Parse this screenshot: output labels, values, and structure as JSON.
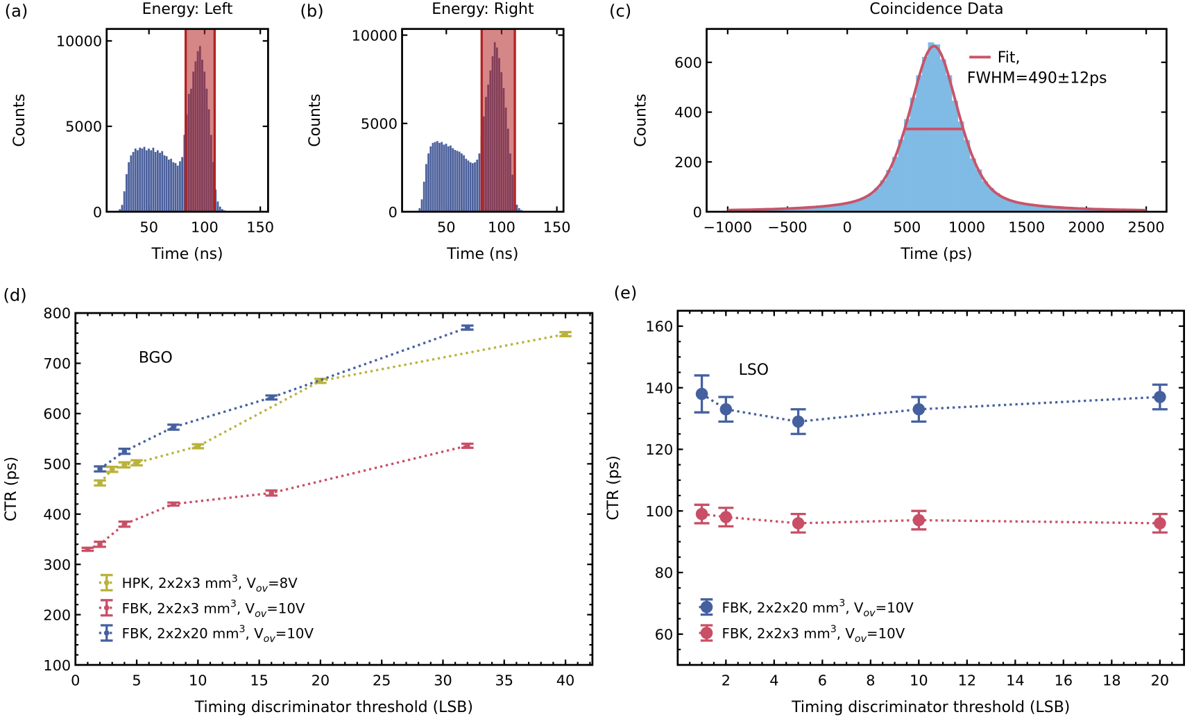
{
  "colors": {
    "blue": "#45609f",
    "red": "#c84f66",
    "olive": "#b9b23c",
    "hist": "#4a5f9b",
    "band": "#b22222",
    "light_blue": "#7fbbe4",
    "fit": "#c8546a"
  },
  "chart_data": [
    {
      "panel_label": "(a)",
      "type": "bar",
      "title": "Energy: Left",
      "xlabel": "Time (ns)",
      "ylabel": "Counts",
      "xlim": [
        12,
        157
      ],
      "ylim": [
        0,
        10700
      ],
      "xticks": [
        50,
        100,
        150
      ],
      "xtick_labels": [
        "50",
        "100",
        "150"
      ],
      "yticks": [
        0,
        5000,
        10000
      ],
      "ytick_labels": [
        "0",
        "5000",
        "10000"
      ],
      "bin_width": 2,
      "x": [
        20,
        22,
        24,
        26,
        28,
        30,
        32,
        34,
        36,
        38,
        40,
        42,
        44,
        46,
        48,
        50,
        52,
        54,
        56,
        58,
        60,
        62,
        64,
        66,
        68,
        70,
        72,
        74,
        76,
        78,
        80,
        82,
        84,
        86,
        88,
        90,
        92,
        94,
        96,
        98,
        100,
        102,
        104,
        106,
        108,
        110,
        112,
        114,
        116,
        118,
        120,
        122,
        124,
        126,
        128
      ],
      "values": [
        0,
        50,
        150,
        400,
        1200,
        2200,
        2900,
        3300,
        3500,
        3700,
        3600,
        3750,
        3700,
        3800,
        3600,
        3700,
        3600,
        3750,
        3500,
        3600,
        3450,
        3550,
        3300,
        3250,
        3050,
        3100,
        2900,
        2850,
        2700,
        2950,
        3200,
        4500,
        5700,
        6900,
        7200,
        8200,
        8800,
        9400,
        9700,
        8900,
        8200,
        7200,
        6000,
        4500,
        2900,
        1300,
        600,
        300,
        150,
        80,
        40,
        20,
        10,
        5,
        0
      ],
      "selection_window": [
        83,
        109
      ]
    },
    {
      "panel_label": "(b)",
      "type": "bar",
      "title": "Energy: Right",
      "xlabel": "Time (ns)",
      "ylabel": "Counts",
      "xlim": [
        10,
        156
      ],
      "ylim": [
        0,
        10350
      ],
      "xticks": [
        50,
        100,
        150
      ],
      "xtick_labels": [
        "50",
        "100",
        "150"
      ],
      "yticks": [
        0,
        5000,
        10000
      ],
      "ytick_labels": [
        "0",
        "5000",
        "10000"
      ],
      "bin_width": 2,
      "x": [
        24,
        26,
        28,
        30,
        32,
        34,
        36,
        38,
        40,
        42,
        44,
        46,
        48,
        50,
        52,
        54,
        56,
        58,
        60,
        62,
        64,
        66,
        68,
        70,
        72,
        74,
        76,
        78,
        80,
        82,
        84,
        86,
        88,
        90,
        92,
        94,
        96,
        98,
        100,
        102,
        104,
        106,
        108,
        110,
        112,
        114,
        116,
        118,
        120,
        122,
        124
      ],
      "values": [
        50,
        200,
        700,
        1700,
        2700,
        3300,
        3700,
        3900,
        3950,
        4000,
        3900,
        3950,
        3800,
        3850,
        3700,
        3750,
        3600,
        3500,
        3450,
        3400,
        3300,
        3200,
        3000,
        2900,
        2800,
        2750,
        2800,
        2950,
        3300,
        4300,
        5400,
        6500,
        7200,
        8000,
        8800,
        9600,
        9300,
        8700,
        7900,
        7000,
        5900,
        4700,
        3300,
        2100,
        900,
        400,
        200,
        100,
        50,
        20,
        0
      ],
      "selection_window": [
        82,
        112
      ]
    },
    {
      "panel_label": "(c)",
      "type": "bar",
      "title": "Coincidence Data",
      "xlabel": "Time (ps)",
      "ylabel": "Counts",
      "xlim": [
        -1176,
        2670
      ],
      "ylim": [
        0,
        734
      ],
      "xticks": [
        -1000,
        -500,
        0,
        500,
        1000,
        1500,
        2000,
        2500
      ],
      "xtick_labels": [
        "−1000",
        "−500",
        "0",
        "500",
        "1000",
        "1500",
        "2000",
        "2500"
      ],
      "yticks": [
        0,
        200,
        400,
        600
      ],
      "ytick_labels": [
        "0",
        "200",
        "400",
        "600"
      ],
      "bin_width": 50,
      "x_start": -1000,
      "values": [
        2,
        3,
        3,
        4,
        4,
        5,
        5,
        6,
        7,
        8,
        9,
        10,
        12,
        14,
        16,
        18,
        20,
        23,
        26,
        30,
        36,
        41,
        48,
        57,
        72,
        95,
        126,
        168,
        220,
        290,
        372,
        458,
        548,
        622,
        680,
        672,
        612,
        548,
        446,
        362,
        288,
        214,
        170,
        122,
        96,
        75,
        60,
        46,
        42,
        34,
        31,
        27,
        24,
        22,
        20,
        17,
        15,
        14,
        12,
        11,
        10,
        9,
        8,
        7,
        6,
        5,
        4,
        4,
        3,
        3,
        2
      ],
      "fit": {
        "label": "Fit,",
        "fwhm_label": "FWHM=490±12ps",
        "center": 725,
        "amplitude": 665,
        "fwhm": 490
      }
    },
    {
      "panel_label": "(d)",
      "type": "line",
      "annotation": "BGO",
      "xlabel": "Timing discriminator threshold (LSB)",
      "ylabel": "CTR (ps)",
      "xlim": [
        0,
        42.2
      ],
      "ylim": [
        100,
        800
      ],
      "xticks": [
        0,
        5,
        10,
        15,
        20,
        25,
        30,
        35,
        40
      ],
      "xtick_labels": [
        "0",
        "5",
        "10",
        "15",
        "20",
        "25",
        "30",
        "35",
        "40"
      ],
      "yticks": [
        100,
        200,
        300,
        400,
        500,
        600,
        700,
        800
      ],
      "ytick_labels": [
        "100",
        "200",
        "300",
        "400",
        "500",
        "600",
        "700",
        "800"
      ],
      "legend_position": "lower-left",
      "series": [
        {
          "name": {
            "prefix": "HPK, 2x2x3 mm",
            "sup": "3",
            "mid": ", V",
            "sub": "ov",
            "suffix": "=8V"
          },
          "color": "olive",
          "x": [
            2,
            3,
            4,
            5,
            10,
            20,
            40
          ],
          "y": [
            462,
            489,
            498,
            502,
            535,
            665,
            758
          ],
          "err": [
            5,
            5,
            5,
            5,
            4,
            4,
            4
          ]
        },
        {
          "name": {
            "prefix": "FBK, 2x2x3 mm",
            "sup": "3",
            "mid": ", V",
            "sub": "ov",
            "suffix": "=10V"
          },
          "color": "red",
          "x": [
            1,
            2,
            4,
            8,
            16,
            32
          ],
          "y": [
            330,
            340,
            380,
            420,
            442,
            536
          ],
          "err": [
            3,
            5,
            5,
            3,
            5,
            4
          ]
        },
        {
          "name": {
            "prefix": "FBK, 2x2x20 mm",
            "sup": "3",
            "mid": ", V",
            "sub": "ov",
            "suffix": "=10V"
          },
          "color": "blue",
          "x": [
            2,
            4,
            8,
            16,
            32
          ],
          "y": [
            490,
            525,
            573,
            632,
            771
          ],
          "err": [
            5,
            5,
            5,
            4,
            4
          ]
        }
      ]
    },
    {
      "panel_label": "(e)",
      "type": "line",
      "annotation": "LSO",
      "xlabel": "Timing discriminator threshold (LSB)",
      "ylabel": "CTR (ps)",
      "xlim": [
        0,
        21
      ],
      "ylim": [
        50,
        165
      ],
      "xticks": [
        2,
        4,
        6,
        8,
        10,
        12,
        14,
        16,
        18,
        20
      ],
      "xtick_labels": [
        "2",
        "4",
        "6",
        "8",
        "10",
        "12",
        "14",
        "16",
        "18",
        "20"
      ],
      "yticks": [
        60,
        80,
        100,
        120,
        140,
        160
      ],
      "ytick_labels": [
        "60",
        "80",
        "100",
        "120",
        "140",
        "160"
      ],
      "legend_position": "lower-left",
      "series": [
        {
          "name": {
            "prefix": "FBK, 2x2x20 mm",
            "sup": "3",
            "mid": ", V",
            "sub": "ov",
            "suffix": "=10V"
          },
          "color": "blue",
          "x": [
            1,
            2,
            5,
            10,
            20
          ],
          "y": [
            138,
            133,
            129,
            133,
            137
          ],
          "err": [
            6,
            4,
            4,
            4,
            4
          ]
        },
        {
          "name": {
            "prefix": "FBK, 2x2x3 mm",
            "sup": "3",
            "mid": ", V",
            "sub": "ov",
            "suffix": "=10V"
          },
          "color": "red",
          "x": [
            1,
            2,
            5,
            10,
            20
          ],
          "y": [
            99,
            98,
            96,
            97,
            96
          ],
          "err": [
            3,
            3,
            3,
            3,
            3
          ]
        }
      ]
    }
  ]
}
